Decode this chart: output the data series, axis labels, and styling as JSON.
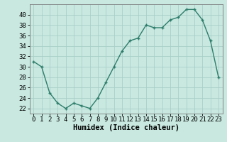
{
  "x": [
    0,
    1,
    2,
    3,
    4,
    5,
    6,
    7,
    8,
    9,
    10,
    11,
    12,
    13,
    14,
    15,
    16,
    17,
    18,
    19,
    20,
    21,
    22,
    23
  ],
  "y": [
    31,
    30,
    25,
    23,
    22,
    23,
    22.5,
    22,
    24,
    27,
    30,
    33,
    35,
    35.5,
    38,
    37.5,
    37.5,
    39,
    39.5,
    41,
    41,
    39,
    35,
    28
  ],
  "xlabel": "Humidex (Indice chaleur)",
  "xlim": [
    -0.5,
    23.5
  ],
  "ylim": [
    21,
    42
  ],
  "yticks": [
    22,
    24,
    26,
    28,
    30,
    32,
    34,
    36,
    38,
    40
  ],
  "xticks": [
    0,
    1,
    2,
    3,
    4,
    5,
    6,
    7,
    8,
    9,
    10,
    11,
    12,
    13,
    14,
    15,
    16,
    17,
    18,
    19,
    20,
    21,
    22,
    23
  ],
  "line_color": "#2e7d6b",
  "marker": "+",
  "bg_color": "#c8e8e0",
  "grid_color": "#aacfc8",
  "label_fontsize": 7.5,
  "tick_fontsize": 6.5
}
